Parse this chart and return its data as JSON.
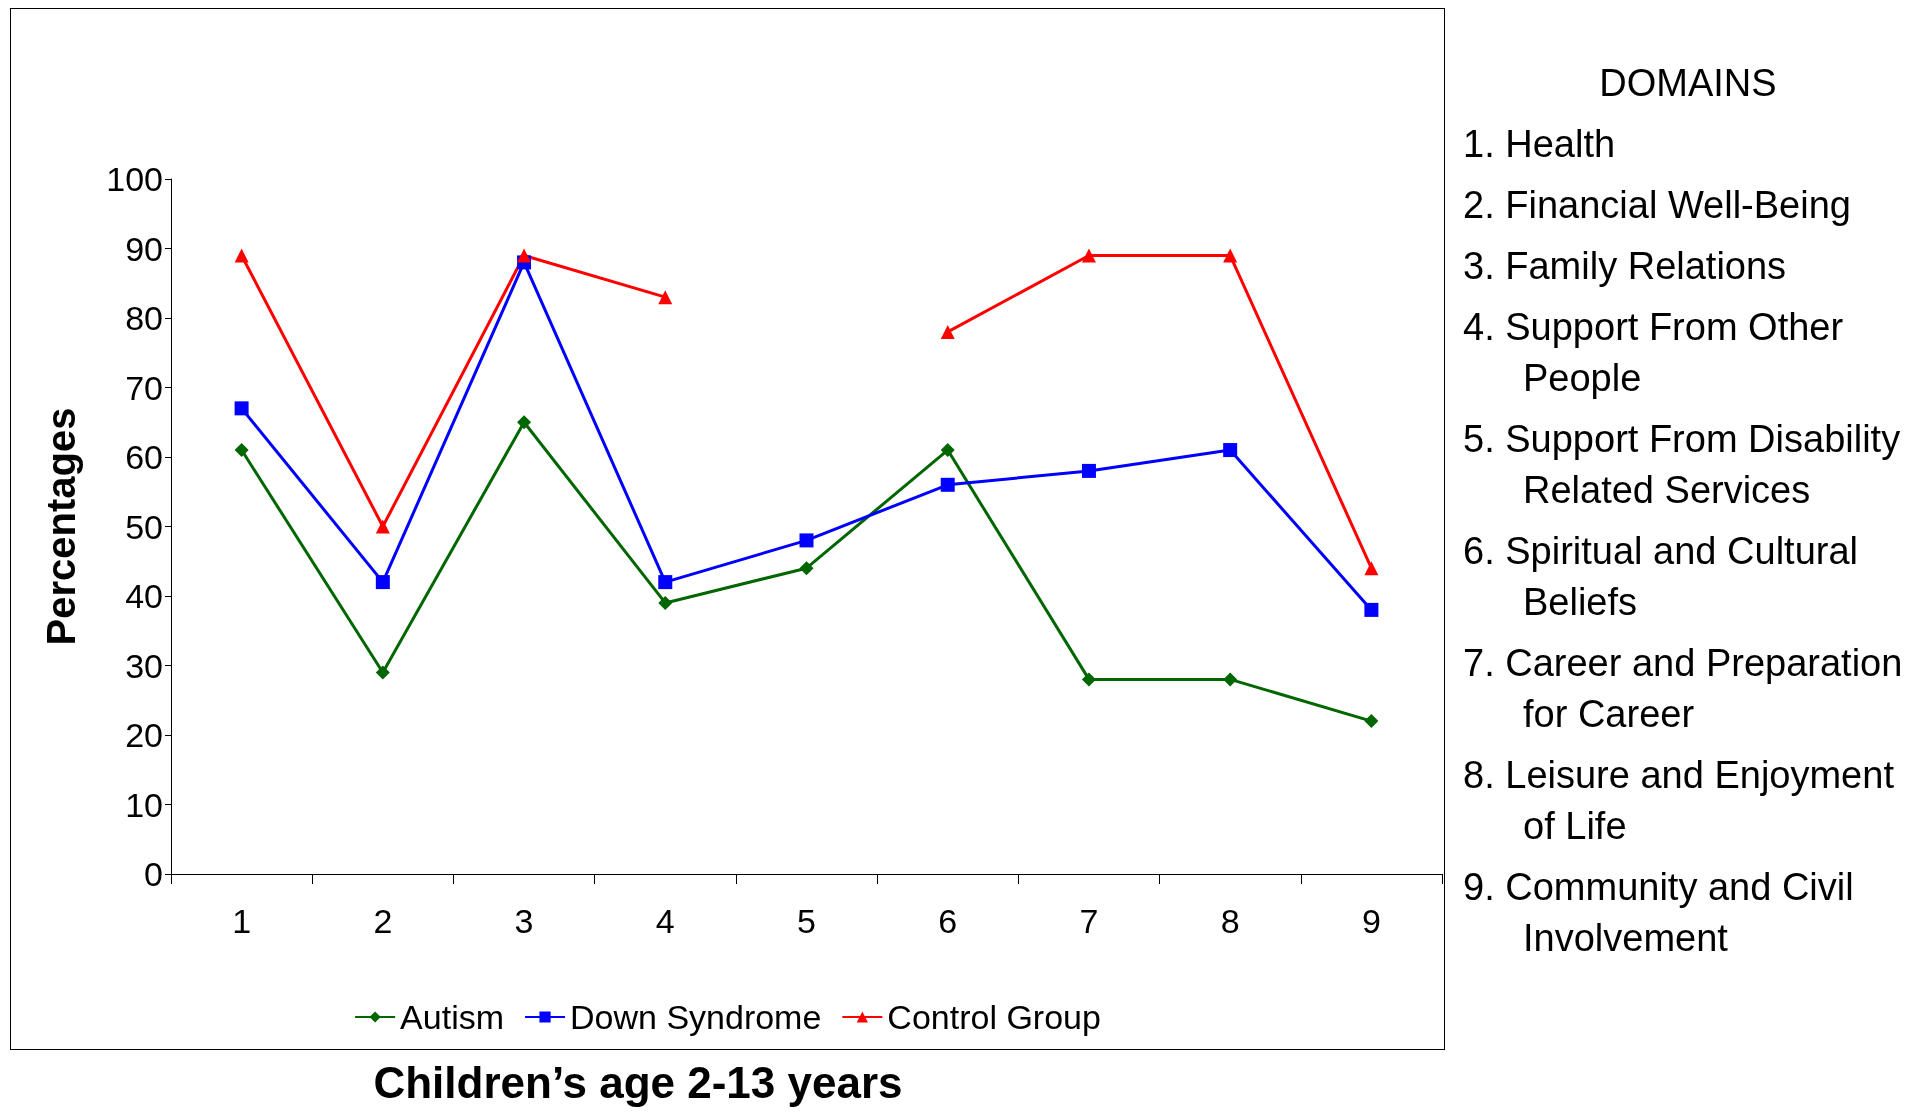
{
  "chart_data": {
    "type": "line",
    "xlabel": "Children’s age 2-13 years",
    "ylabel": "Percentages",
    "categories": [
      "1",
      "2",
      "3",
      "4",
      "5",
      "6",
      "7",
      "8",
      "9"
    ],
    "series": [
      {
        "name": "Autism",
        "color": "#006600",
        "marker": "diamond",
        "values": [
          61,
          29,
          65,
          39,
          44,
          61,
          28,
          28,
          22
        ]
      },
      {
        "name": "Down Syndrome",
        "color": "#0000ff",
        "marker": "square",
        "values": [
          67,
          42,
          88,
          42,
          48,
          56,
          58,
          61,
          38
        ]
      },
      {
        "name": "Control Group",
        "color": "#ff0000",
        "marker": "triangle",
        "values": [
          89,
          50,
          89,
          83,
          null,
          78,
          89,
          89,
          44
        ]
      }
    ],
    "ylim": [
      0,
      100
    ],
    "yticks": [
      0,
      10,
      20,
      30,
      40,
      50,
      60,
      70,
      80,
      90,
      100
    ],
    "grid": false,
    "legend": "bottom",
    "annotations": [
      "DOMAINS",
      "1. Health",
      "2. Financial Well-Being",
      "3. Family Relations",
      "4. Support From Other People",
      "5. Support From Disability Related Services",
      "6. Spiritual and Cultural Beliefs",
      "7. Career and Preparation for Career",
      "8. Leisure and Enjoyment of Life",
      "9. Community and Civil Involvement"
    ]
  }
}
